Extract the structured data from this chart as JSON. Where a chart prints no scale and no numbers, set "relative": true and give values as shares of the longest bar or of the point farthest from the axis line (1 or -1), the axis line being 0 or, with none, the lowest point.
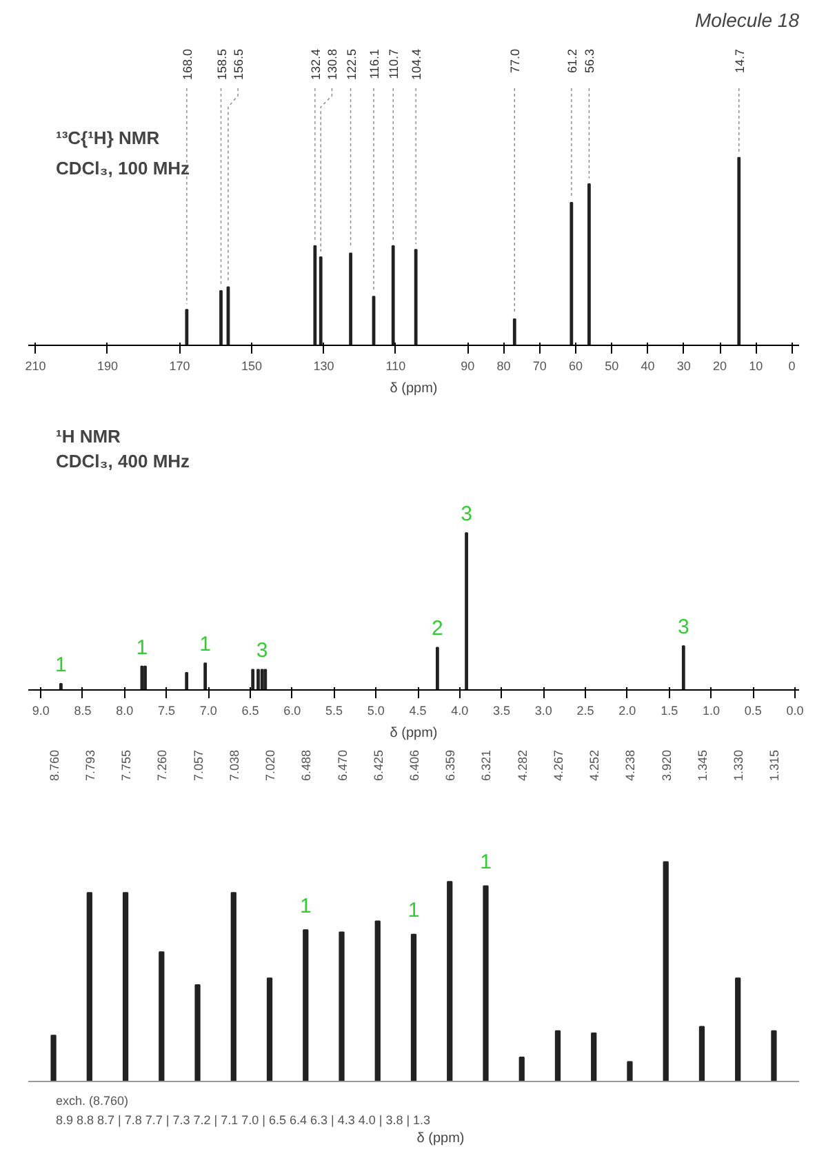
{
  "chart_data": [
    {
      "type": "bar",
      "title": "¹³C{¹H} NMR",
      "subtitle": "CDCl₃, 100 MHz",
      "xlabel": "δ (ppm)",
      "relative": true,
      "grid": false,
      "color": "#222222",
      "x": [
        168.0,
        158.5,
        156.5,
        132.4,
        130.8,
        122.5,
        116.1,
        110.7,
        104.4,
        77.0,
        61.2,
        56.3,
        14.7
      ],
      "values": [
        0.19,
        0.29,
        0.31,
        0.53,
        0.47,
        0.49,
        0.26,
        0.53,
        0.51,
        0.14,
        0.76,
        0.86,
        1
      ],
      "xlim": [
        212,
        -2
      ],
      "xticks": [
        210,
        190,
        170,
        150,
        130,
        110,
        90,
        80,
        70,
        60,
        50,
        40,
        30,
        20,
        10,
        0
      ],
      "annotations": [
        "Molecule 18",
        {
          "text": "168.0",
          "x": 168.0,
          "y": 0.19
        },
        {
          "text": "158.5",
          "x": 158.5,
          "y": 0.29
        },
        {
          "text": "156.5",
          "x": 156.5,
          "y": 0.31
        },
        {
          "text": "132.4",
          "x": 132.4,
          "y": 0.53
        },
        {
          "text": "130.8",
          "x": 130.8,
          "y": 0.47
        },
        {
          "text": "122.5",
          "x": 122.5,
          "y": 0.49
        },
        {
          "text": "116.1",
          "x": 116.1,
          "y": 0.26
        },
        {
          "text": "110.7",
          "x": 110.7,
          "y": 0.53
        },
        {
          "text": "104.4",
          "x": 104.4,
          "y": 0.51
        },
        {
          "text": "77.0",
          "x": 77.0,
          "y": 0.14
        },
        {
          "text": "61.2",
          "x": 61.2,
          "y": 0.76
        },
        {
          "text": "56.3",
          "x": 56.3,
          "y": 0.86
        },
        {
          "text": "14.7",
          "x": 14.7,
          "y": 1
        }
      ]
    },
    {
      "type": "bar",
      "title": "¹H NMR",
      "subtitle": "CDCl₃, 400 MHz",
      "xlabel": "δ (ppm)",
      "relative": true,
      "grid": false,
      "color": "#222222",
      "x": [
        8.76,
        7.793,
        7.755,
        7.26,
        7.038,
        6.47,
        6.406,
        6.359,
        6.321,
        4.267,
        3.92,
        1.33
      ],
      "values": [
        0.04,
        0.15,
        0.15,
        0.11,
        0.17,
        0.13,
        0.13,
        0.13,
        0.13,
        0.27,
        1,
        0.28
      ],
      "xlim": [
        9.15,
        -0.05
      ],
      "xticks": [
        {
          "value": 9,
          "label": "9.0"
        },
        8.5,
        {
          "value": 8,
          "label": "8.0"
        },
        7.5,
        {
          "value": 7,
          "label": "7.0"
        },
        6.5,
        {
          "value": 6,
          "label": "6.0"
        },
        5.5,
        {
          "value": 5,
          "label": "5.0"
        },
        4.5,
        {
          "value": 4,
          "label": "4.0"
        },
        3.5,
        {
          "value": 3,
          "label": "3.0"
        },
        2.5,
        {
          "value": 2,
          "label": "2.0"
        },
        1.5,
        {
          "value": 1,
          "label": "1.0"
        },
        0.5,
        {
          "value": 0,
          "label": "0.0"
        }
      ],
      "annotations": [
        {
          "text": "1",
          "x": 8.76,
          "y": 0.04
        },
        {
          "text": "1",
          "x": 7.793,
          "y": 0.15
        },
        {
          "text": "1",
          "x": 7.038,
          "y": 0.17
        },
        {
          "text": "3",
          "x": 6.359,
          "y": 0.13
        },
        {
          "text": "2",
          "x": 4.267,
          "y": 0.27
        },
        {
          "text": "3",
          "x": 3.92,
          "y": 1
        },
        {
          "text": "3",
          "x": 1.33,
          "y": 0.28
        }
      ]
    },
    {
      "type": "bar",
      "xlabel": "δ (ppm)",
      "relative": true,
      "grid": false,
      "color": "#222222",
      "categories": [
        "8.760",
        "7.793",
        "7.755",
        "7.260",
        "7.057",
        "7.038",
        "7.020",
        "6.488",
        "6.470",
        "6.425",
        "6.406",
        "6.359",
        "6.321",
        "4.282",
        "4.267",
        "4.252",
        "4.238",
        "3.920",
        "1.345",
        "1.330",
        "1.315"
      ],
      "values": [
        0.21,
        0.86,
        0.86,
        0.59,
        0.44,
        0.86,
        0.47,
        0.69,
        0.68,
        0.73,
        0.67,
        0.91,
        0.89,
        0.11,
        0.23,
        0.22,
        0.09,
        1,
        0.25,
        0.47,
        0.23
      ],
      "annotations": [
        "exch. (8.760)",
        "8.9  8.8  8.7 | 7.8  7.7 | 7.3  7.2 | 7.1  7.0 | 6.5  6.4  6.3 | 4.3  4.0 | 3.8 | 1.3",
        {
          "text": "1",
          "x": "6.488",
          "y": 0.69
        },
        {
          "text": "1",
          "x": "6.406",
          "y": 0.67
        },
        {
          "text": "1",
          "x": "6.321",
          "y": 0.89
        }
      ]
    }
  ]
}
